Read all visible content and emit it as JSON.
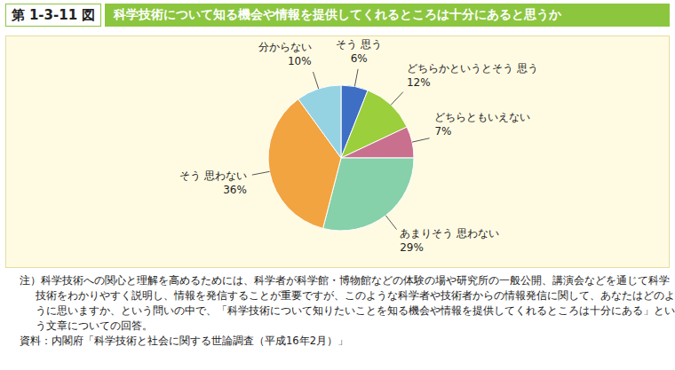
{
  "chart_data": {
    "type": "pie",
    "figure_label": "第 1-3-11 図",
    "title": "科学技術について知る機会や情報を提供してくれるところは十分にあると思うか",
    "categories": [
      "そう 思う",
      "どちらかというとそう 思う",
      "どちらともいえない",
      "あまりそう 思わない",
      "そう 思わない",
      "分からない"
    ],
    "values": [
      6,
      12,
      7,
      29,
      36,
      10
    ],
    "value_labels": [
      "6%",
      "12%",
      "7%",
      "29%",
      "36%",
      "10%"
    ],
    "colors": [
      "#3f6fc4",
      "#9bcf3c",
      "#c9708f",
      "#86d0aa",
      "#f2a440",
      "#95d3e3"
    ],
    "data_labels": true,
    "note": "注）科学技術への関心と理解を高めるためには、科学者が科学館・博物館などの体験の場や研究所の一般公開、講演会などを通じて科学技術をわかりやすく説明し、情報を発信することが重要ですが、このような科学者や技術者からの情報発信に関して、あなたはどのように思いますか、という問いの中で、「科学技術について知りたいことを知る機会や情報を提供してくれるところは十分にある」という文章についての回答。",
    "source": "資料：内閣府「科学技術と社会に関する世論調査（平成16年2月）」"
  }
}
